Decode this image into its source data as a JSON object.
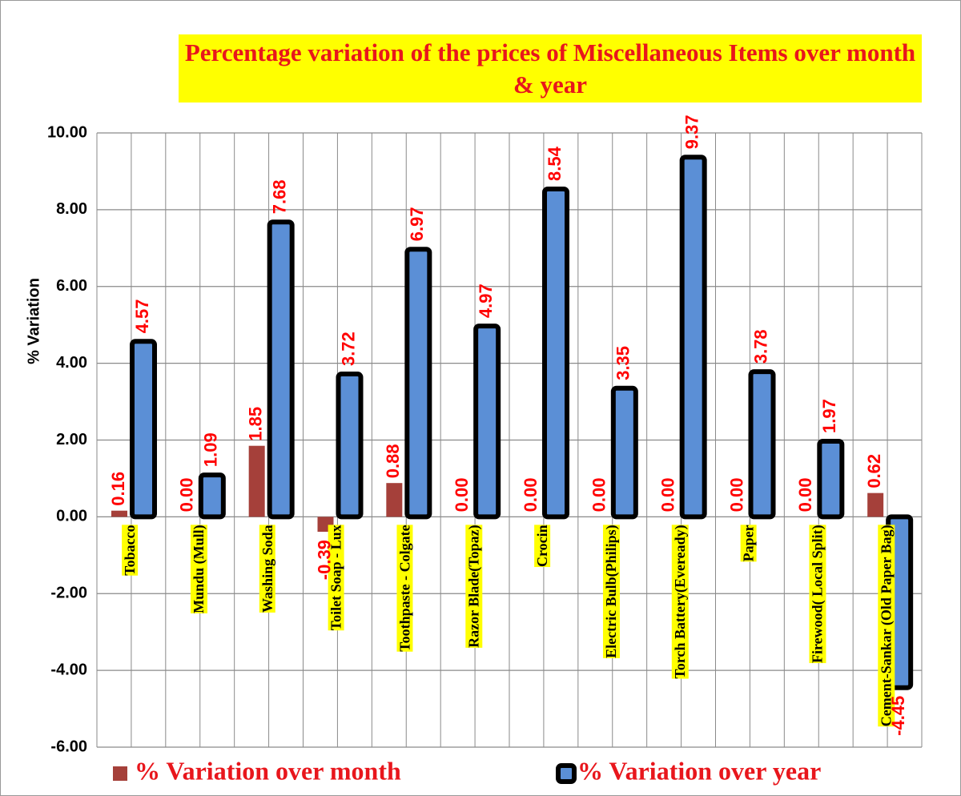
{
  "chart_data": {
    "type": "bar",
    "title": "Percentage variation of the prices of Miscellaneous Items over month & year",
    "y_label": "% Variation",
    "categories": [
      "Tobacco",
      "Mundu (Mull)",
      "Washing Soda",
      "Toilet Soap - Lux",
      "Toothpaste - Colgate",
      "Razor Blade(Topaz)",
      "Crocin",
      "Electric Bulb(Philips)",
      "Torch Battery(Eveready)",
      "Paper",
      "Firewood( Local Split)",
      "Cement-Sankar (Old Paper Bag)"
    ],
    "series": [
      {
        "name": "% Variation over month",
        "color": "#a5403a",
        "values": [
          0.16,
          0,
          1.85,
          -0.39,
          0.88,
          0,
          0,
          0,
          0,
          0,
          0,
          0.62
        ],
        "value_labels": [
          "0.16",
          "0.00",
          "1.85",
          "-0.39",
          "0.88",
          "0.00",
          "0.00",
          "0.00",
          "0.00",
          "0.00",
          "0.00",
          "0.62"
        ]
      },
      {
        "name": "% Variation over year",
        "color": "#5b8fd6",
        "edgecolor": "#000000",
        "values": [
          4.57,
          1.09,
          7.68,
          3.72,
          6.97,
          4.97,
          8.54,
          3.35,
          9.37,
          3.78,
          1.97,
          -4.45
        ],
        "value_labels": [
          "4.57",
          "1.09",
          "7.68",
          "3.72",
          "6.97",
          "4.97",
          "8.54",
          "3.35",
          "9.37",
          "3.78",
          "1.97",
          "-4.45"
        ]
      }
    ],
    "ylim": [
      -6,
      10
    ],
    "yticks": [
      {
        "value": -6,
        "label": "-6.00"
      },
      {
        "value": -4,
        "label": "-4.00"
      },
      {
        "value": -2,
        "label": "-2.00"
      },
      {
        "value": 0,
        "label": "0.00"
      },
      {
        "value": 2,
        "label": "2.00"
      },
      {
        "value": 4,
        "label": "4.00"
      },
      {
        "value": 6,
        "label": "6.00"
      },
      {
        "value": 8,
        "label": "8.00"
      },
      {
        "value": 10,
        "label": "10.00"
      }
    ],
    "grid": true
  }
}
